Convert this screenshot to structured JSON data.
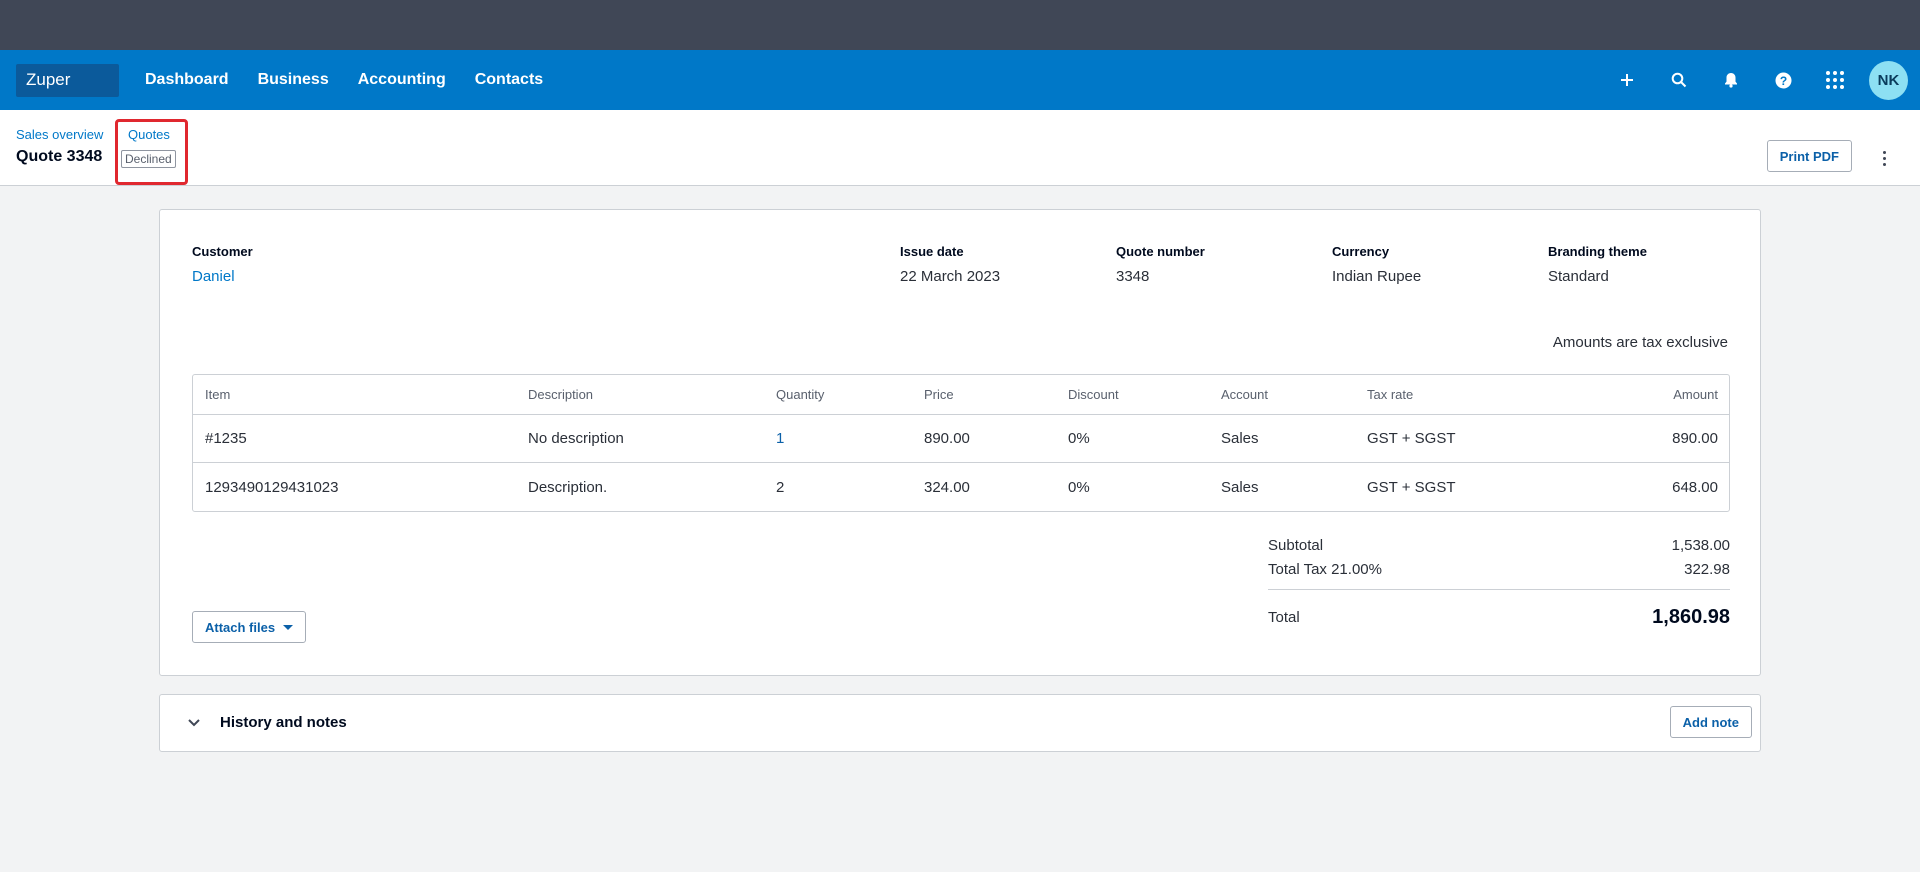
{
  "nav": {
    "org_name": "Zuper",
    "items": [
      {
        "label": "Dashboard"
      },
      {
        "label": "Business"
      },
      {
        "label": "Accounting"
      },
      {
        "label": "Contacts"
      }
    ],
    "icons": [
      "plus-icon",
      "search-icon",
      "bell-icon",
      "help-icon",
      "apps-grid-icon"
    ],
    "avatar_initials": "NK"
  },
  "page": {
    "breadcrumb_sales": "Sales overview",
    "breadcrumb_quotes": "Quotes",
    "title": "Quote 3348",
    "status": "Declined",
    "print_label": "Print PDF"
  },
  "quote": {
    "customer_label": "Customer",
    "customer": "Daniel",
    "issue_date_label": "Issue date",
    "issue_date": "22 March 2023",
    "quote_number_label": "Quote number",
    "quote_number": "3348",
    "currency_label": "Currency",
    "currency": "Indian Rupee",
    "branding_label": "Branding theme",
    "branding": "Standard",
    "tax_note": "Amounts are tax exclusive"
  },
  "table": {
    "headers": {
      "item": "Item",
      "description": "Description",
      "quantity": "Quantity",
      "price": "Price",
      "discount": "Discount",
      "account": "Account",
      "tax_rate": "Tax rate",
      "amount": "Amount"
    },
    "rows": [
      {
        "item": "#1235",
        "description": "No description",
        "quantity": "1",
        "price": "890.00",
        "discount": "0%",
        "account": "Sales",
        "tax_rate": "GST + SGST",
        "amount": "890.00"
      },
      {
        "item": "1293490129431023",
        "description": "Description.",
        "quantity": "2",
        "price": "324.00",
        "discount": "0%",
        "account": "Sales",
        "tax_rate": "GST + SGST",
        "amount": "648.00"
      }
    ]
  },
  "totals": {
    "subtotal_label": "Subtotal",
    "subtotal": "1,538.00",
    "tax_label": "Total Tax 21.00%",
    "tax": "322.98",
    "total_label": "Total",
    "total": "1,860.98"
  },
  "attach_label": "Attach files",
  "history": {
    "title": "History and notes",
    "add_note_label": "Add note"
  },
  "colors": {
    "nav_bg": "#0078c8",
    "topbar_bg": "#404756",
    "highlight": "#e0282f",
    "link": "#0078c8"
  }
}
